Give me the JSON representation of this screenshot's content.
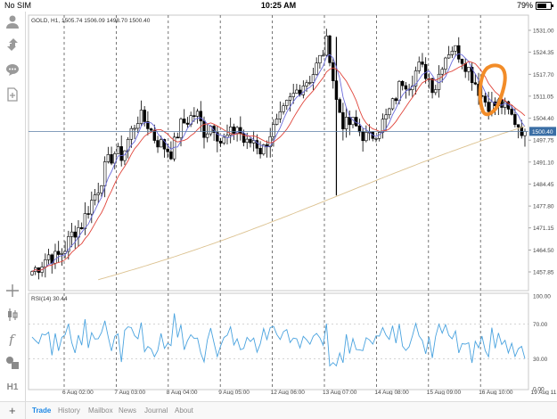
{
  "status": {
    "carrier": "No SIM",
    "time": "10:25 AM",
    "battery": "79%",
    "battery_level": 0.79
  },
  "chart": {
    "symbol_line": "GOLD, H1, 1505.74 1506.09 1498.70 1500.40",
    "rsi_label": "RSI(14) 30.44",
    "current_price_label": "1500.40",
    "price_axis": [
      "1531.00",
      "1524.35",
      "1517.70",
      "1511.05",
      "1504.40",
      "1497.75",
      "1491.10",
      "1484.45",
      "1477.80",
      "1471.15",
      "1464.50",
      "1457.85"
    ],
    "rsi_axis": [
      "100.00",
      "70.00",
      "30.00",
      "0.00"
    ],
    "time_axis": [
      "6 Aug 02:00",
      "7 Aug 03:00",
      "8 Aug 04:00",
      "9 Aug 05:00",
      "12 Aug 06:00",
      "13 Aug 07:00",
      "14 Aug 08:00",
      "15 Aug 09:00",
      "16 Aug 10:00",
      "19 Aug 11:00"
    ],
    "colors": {
      "candle": "#000000",
      "ma_fast": "#6b6bdc",
      "ma_mid": "#e0453b",
      "ma_slow": "#dcc290",
      "rsi": "#4aa3df",
      "price_line": "#5b7fa6",
      "price_tag": "#3a6ea5",
      "annotation": "#f28c28"
    }
  },
  "chart_data": {
    "type": "candlestick",
    "symbol": "GOLD",
    "timeframe": "H1",
    "ylim": [
      1452,
      1535
    ],
    "last_price": 1500.4,
    "ohlc_last": {
      "open": 1505.74,
      "high": 1506.09,
      "low": 1498.7,
      "close": 1500.4
    },
    "x": [
      "6 Aug 02:00",
      "7 Aug 03:00",
      "8 Aug 04:00",
      "9 Aug 05:00",
      "12 Aug 06:00",
      "13 Aug 07:00",
      "14 Aug 08:00",
      "15 Aug 09:00",
      "16 Aug 10:00",
      "19 Aug 11:00"
    ],
    "close_path": [
      1458,
      1460,
      1463,
      1462,
      1465,
      1470,
      1472,
      1478,
      1483,
      1490,
      1494,
      1493,
      1500,
      1505,
      1503,
      1498,
      1496,
      1494,
      1502,
      1504,
      1506,
      1500,
      1503,
      1497,
      1499,
      1502,
      1496,
      1498,
      1494,
      1500,
      1503,
      1508,
      1512,
      1515,
      1517,
      1522,
      1528,
      1510,
      1502,
      1503,
      1500,
      1498,
      1501,
      1504,
      1509,
      1516,
      1515,
      1520,
      1518,
      1513,
      1522,
      1526,
      1524,
      1520,
      1515,
      1510,
      1508,
      1509,
      1506,
      1503,
      1500
    ],
    "rsi": {
      "period": 14,
      "last": 30.44,
      "ylim": [
        0,
        100
      ],
      "levels": [
        30,
        70
      ]
    }
  },
  "tabs": [
    {
      "label": "Trade",
      "active": true
    },
    {
      "label": "History",
      "active": false
    },
    {
      "label": "Mailbox",
      "active": false
    },
    {
      "label": "News",
      "active": false
    },
    {
      "label": "Journal",
      "active": false
    },
    {
      "label": "About",
      "active": false
    }
  ],
  "sidebar": {
    "timeframe_label": "H1"
  }
}
